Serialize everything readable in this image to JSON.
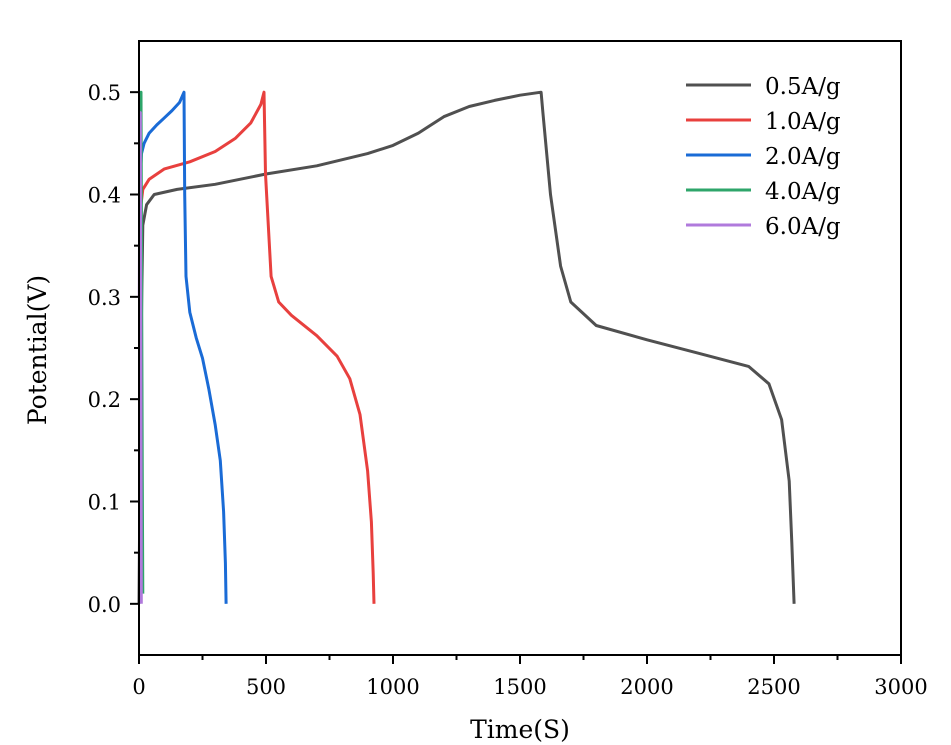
{
  "chart_data": {
    "type": "line",
    "title": "",
    "xlabel": "Time(S)",
    "ylabel": "Potential(V)",
    "xlim": [
      0,
      3000
    ],
    "ylim": [
      -0.05,
      0.55
    ],
    "xticks": [
      0,
      500,
      1000,
      1500,
      2000,
      2500,
      3000
    ],
    "xtick_labels": [
      "0",
      "500",
      "1000",
      "1500",
      "2000",
      "2500",
      "3000"
    ],
    "yticks": [
      0.0,
      0.1,
      0.2,
      0.3,
      0.4,
      0.5
    ],
    "ytick_labels": [
      "0.0",
      "0.1",
      "0.2",
      "0.3",
      "0.4",
      "0.5"
    ],
    "grid": false,
    "legend_position": "top-right",
    "series": [
      {
        "name": "0.5A/g",
        "color": "#505050",
        "x": [
          0,
          8,
          15,
          30,
          60,
          150,
          300,
          500,
          700,
          900,
          1000,
          1100,
          1200,
          1300,
          1400,
          1500,
          1583,
          1590,
          1620,
          1660,
          1700,
          1800,
          2000,
          2200,
          2400,
          2480,
          2530,
          2560,
          2570,
          2579
        ],
        "y": [
          0.0,
          0.25,
          0.37,
          0.39,
          0.4,
          0.405,
          0.41,
          0.42,
          0.428,
          0.44,
          0.448,
          0.46,
          0.476,
          0.486,
          0.492,
          0.497,
          0.5,
          0.48,
          0.4,
          0.33,
          0.295,
          0.272,
          0.258,
          0.245,
          0.232,
          0.215,
          0.18,
          0.12,
          0.06,
          0.0
        ]
      },
      {
        "name": "1.0A/g",
        "color": "#E8403E",
        "x": [
          5,
          8,
          15,
          40,
          100,
          200,
          300,
          380,
          440,
          480,
          492,
          498,
          520,
          550,
          600,
          700,
          780,
          830,
          870,
          900,
          915,
          922,
          925
        ],
        "y": [
          0.37,
          0.39,
          0.405,
          0.415,
          0.425,
          0.432,
          0.442,
          0.455,
          0.47,
          0.488,
          0.5,
          0.42,
          0.32,
          0.295,
          0.282,
          0.262,
          0.242,
          0.22,
          0.185,
          0.13,
          0.08,
          0.03,
          0.0
        ]
      },
      {
        "name": "2.0A/g",
        "color": "#1A6BD6",
        "x": [
          8,
          10,
          20,
          40,
          70,
          100,
          130,
          160,
          177,
          180,
          185,
          200,
          225,
          250,
          275,
          300,
          320,
          333,
          340,
          343
        ],
        "y": [
          0.43,
          0.44,
          0.45,
          0.46,
          0.468,
          0.475,
          0.482,
          0.49,
          0.5,
          0.4,
          0.32,
          0.285,
          0.26,
          0.24,
          0.21,
          0.175,
          0.14,
          0.09,
          0.04,
          0.0
        ]
      },
      {
        "name": "4.0A/g",
        "color": "#2EA56A",
        "x": [
          4,
          6,
          8,
          10,
          13,
          15
        ],
        "y": [
          0.38,
          0.45,
          0.5,
          0.35,
          0.12,
          0.01
        ]
      },
      {
        "name": "6.0A/g",
        "color": "#B07ADC",
        "x": [
          1,
          3,
          5,
          7,
          9
        ],
        "y": [
          0.3,
          0.42,
          0.48,
          0.25,
          0.0
        ]
      }
    ]
  }
}
